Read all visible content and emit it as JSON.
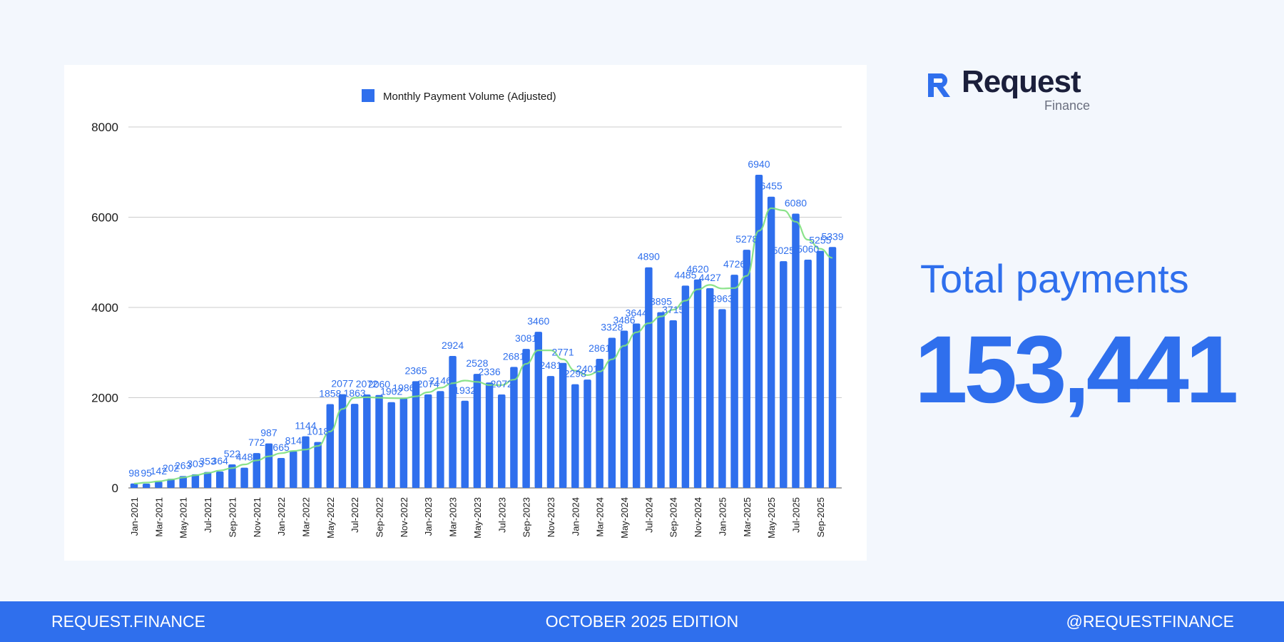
{
  "brand": {
    "name": "Request",
    "sub": "Finance"
  },
  "total": {
    "label": "Total payments",
    "value": "153,441"
  },
  "footer": {
    "left": "REQUEST.FINANCE",
    "center": "OCTOBER 2025  EDITION",
    "right": "@REQUESTFINANCE"
  },
  "colors": {
    "bar": "#2f6fed",
    "trend": "#7ee07e",
    "background": "#f3f7fd",
    "footer": "#2f6fed"
  },
  "chart_data": {
    "type": "bar",
    "legend": {
      "position": "top",
      "entries": [
        "Monthly Payment Volume (Adjusted)"
      ]
    },
    "grid": true,
    "ylim": [
      0,
      8000
    ],
    "yticks": [
      0,
      2000,
      4000,
      6000,
      8000
    ],
    "categories": [
      "Jan-2021",
      "Feb-2021",
      "Mar-2021",
      "Apr-2021",
      "May-2021",
      "Jun-2021",
      "Jul-2021",
      "Aug-2021",
      "Sep-2021",
      "Oct-2021",
      "Nov-2021",
      "Dec-2021",
      "Jan-2022",
      "Feb-2022",
      "Mar-2022",
      "Apr-2022",
      "May-2022",
      "Jun-2022",
      "Jul-2022",
      "Aug-2022",
      "Sep-2022",
      "Oct-2022",
      "Nov-2022",
      "Dec-2022",
      "Jan-2023",
      "Feb-2023",
      "Mar-2023",
      "Apr-2023",
      "May-2023",
      "Jun-2023",
      "Jul-2023",
      "Aug-2023",
      "Sep-2023",
      "Oct-2023",
      "Nov-2023",
      "Dec-2023",
      "Jan-2024",
      "Feb-2024",
      "Mar-2024",
      "Apr-2024",
      "May-2024",
      "Jun-2024",
      "Jul-2024",
      "Aug-2024",
      "Sep-2024",
      "Oct-2024",
      "Nov-2024",
      "Dec-2024",
      "Jan-2025",
      "Feb-2025",
      "Mar-2025",
      "Apr-2025",
      "May-2025",
      "Jun-2025",
      "Jul-2025",
      "Aug-2025",
      "Sep-2025",
      "Oct-2025"
    ],
    "xtick_labels": [
      "Jan-2021",
      "Mar-2021",
      "May-2021",
      "Jul-2021",
      "Sep-2021",
      "Nov-2021",
      "Jan-2022",
      "Mar-2022",
      "May-2022",
      "Jul-2022",
      "Sep-2022",
      "Nov-2022",
      "Jan-2023",
      "Mar-2023",
      "May-2023",
      "Jul-2023",
      "Sep-2023",
      "Nov-2023",
      "Jan-2024",
      "Mar-2024",
      "May-2024",
      "Jul-2024",
      "Sep-2024",
      "Nov-2024",
      "Jan-2025",
      "Mar-2025",
      "May-2025",
      "Jul-2025",
      "Sep-2025"
    ],
    "series": [
      {
        "name": "Monthly Payment Volume (Adjusted)",
        "values": [
          98,
          95,
          142,
          202,
          263,
          303,
          353,
          364,
          522,
          448,
          772,
          987,
          665,
          814,
          1144,
          1018,
          1858,
          2077,
          1863,
          2072,
          2060,
          1902,
          1986,
          2365,
          2074,
          2146,
          2924,
          1932,
          2528,
          2336,
          2072,
          2681,
          3081,
          3460,
          2481,
          2771,
          2298,
          2401,
          2861,
          3328,
          3486,
          3644,
          4890,
          3895,
          3715,
          4485,
          4620,
          4427,
          3963,
          4726,
          5278,
          6940,
          6455,
          5025,
          6080,
          5060,
          5255,
          5339
        ]
      }
    ],
    "data_labels": [
      "98",
      "95",
      "142",
      "202",
      "263",
      "303",
      "353",
      "364",
      "522",
      "448",
      "772",
      "987",
      "665",
      "814",
      "1144",
      "1018",
      "1858",
      "2077",
      "1863",
      "2072",
      "2060",
      "1902",
      "1986",
      "2365",
      "2074",
      "2146",
      "2924",
      "1932",
      "2528",
      "2336",
      "2072",
      "2681",
      "3081",
      "3460",
      "2481",
      "2771",
      "2298",
      "2401",
      "2861",
      "3328",
      "3486",
      "3644",
      "4890",
      "3895",
      "3715",
      "4485",
      "4620",
      "4427",
      "3963",
      "4726",
      "5278",
      "6940",
      "6455",
      "5025",
      "6080",
      "5060",
      "5255",
      "5339"
    ],
    "trend_values": [
      96,
      118,
      146,
      185,
      230,
      280,
      330,
      385,
      440,
      520,
      610,
      700,
      770,
      820,
      850,
      930,
      1250,
      1750,
      2000,
      2010,
      2000,
      1990,
      1985,
      2030,
      2120,
      2220,
      2320,
      2380,
      2350,
      2280,
      2280,
      2400,
      2750,
      3050,
      3050,
      2850,
      2600,
      2500,
      2580,
      2850,
      3150,
      3450,
      3650,
      3800,
      3950,
      4150,
      4400,
      4500,
      4420,
      4430,
      4700,
      5700,
      6200,
      6150,
      5900,
      5500,
      5300,
      5100
    ]
  }
}
